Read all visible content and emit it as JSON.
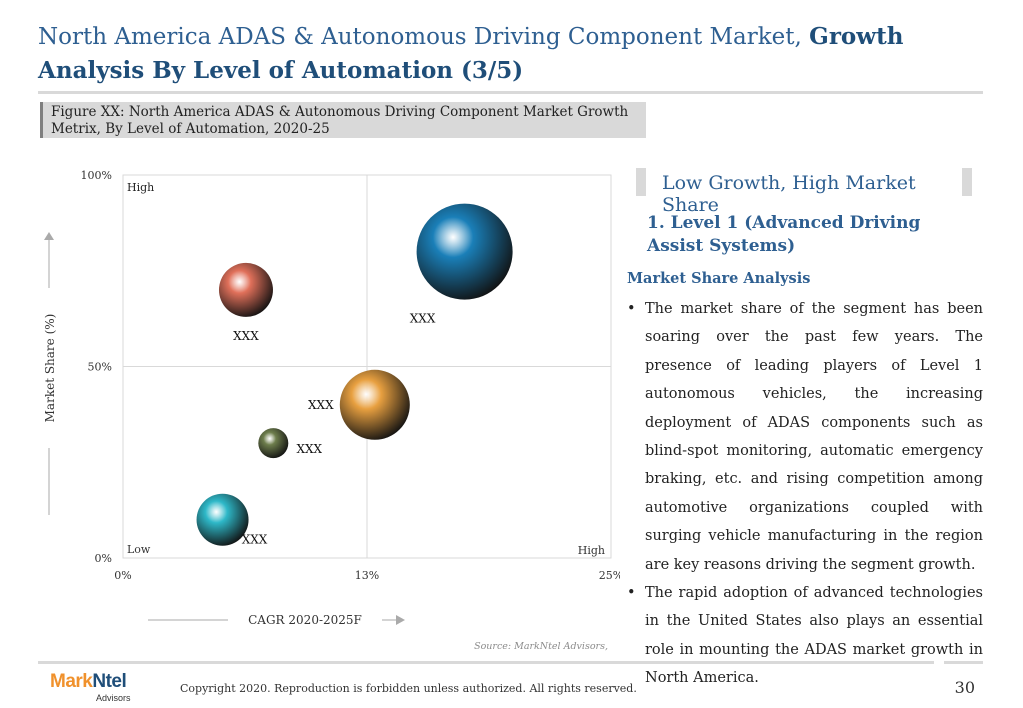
{
  "header": {
    "title_regular": "North America ADAS & Autonomous Driving Component Market,",
    "title_bold": "Growth Analysis By Level of Automation (3/5)"
  },
  "figure_caption": "Figure XX: North America ADAS & Autonomous Driving Component Market Growth Metrix, By Level of Automation, 2020-25",
  "chart_data": {
    "type": "scatter",
    "subtype": "bubble",
    "xlabel": "CAGR 2020-2025F",
    "ylabel": "Market Share (%)",
    "xlim": [
      0,
      25
    ],
    "ylim": [
      0,
      100
    ],
    "x_ticks": [
      "0%",
      "13%",
      "25%"
    ],
    "y_ticks": [
      "0%",
      "50%",
      "100%"
    ],
    "quadrant_labels": {
      "top_left": "High",
      "bottom_left": "Low",
      "bottom_right": "High"
    },
    "grid": "quadrant-dividers",
    "points": [
      {
        "x": 6.3,
        "y": 70,
        "size": 27,
        "label": "XXX",
        "color": "#e0705a"
      },
      {
        "x": 17.5,
        "y": 80,
        "size": 48,
        "label": "XXX",
        "color": "#1a7fb8"
      },
      {
        "x": 12.9,
        "y": 40,
        "size": 35,
        "label": "XXX",
        "color": "#e8a040"
      },
      {
        "x": 7.7,
        "y": 30,
        "size": 15,
        "label": "XXX",
        "color": "#6d7d4c"
      },
      {
        "x": 5.1,
        "y": 10,
        "size": 26,
        "label": "XXX",
        "color": "#2eb8c8"
      }
    ]
  },
  "source": "Source: MarkNtel Advisors,",
  "right_panel": {
    "heading": "Low Growth, High Market Share",
    "segment_title": "1. Level 1 (Advanced Driving Assist Systems)",
    "subheading": "Market Share Analysis",
    "bullets": [
      "The market share of the segment has been soaring over the past few years. The presence of leading players of Level 1 autonomous vehicles, the increasing deployment of ADAS components such as blind-spot monitoring, automatic emergency braking, etc. and rising competition among automotive organizations coupled with surging vehicle manufacturing in the region are key reasons driving the segment growth.",
      "The rapid adoption of advanced technologies in the United States also plays an essential role in mounting the ADAS market growth in North America."
    ]
  },
  "footer": {
    "logo_mark": "Mark",
    "logo_ntel": "Ntel",
    "logo_sub": "Advisors",
    "copyright": "Copyright 2020. Reproduction is forbidden unless authorized. All rights reserved.",
    "page_number": "30"
  },
  "colors": {
    "title": "#2e5f91",
    "accent_grey": "#d9d9d9",
    "logo_orange": "#f0912c"
  }
}
